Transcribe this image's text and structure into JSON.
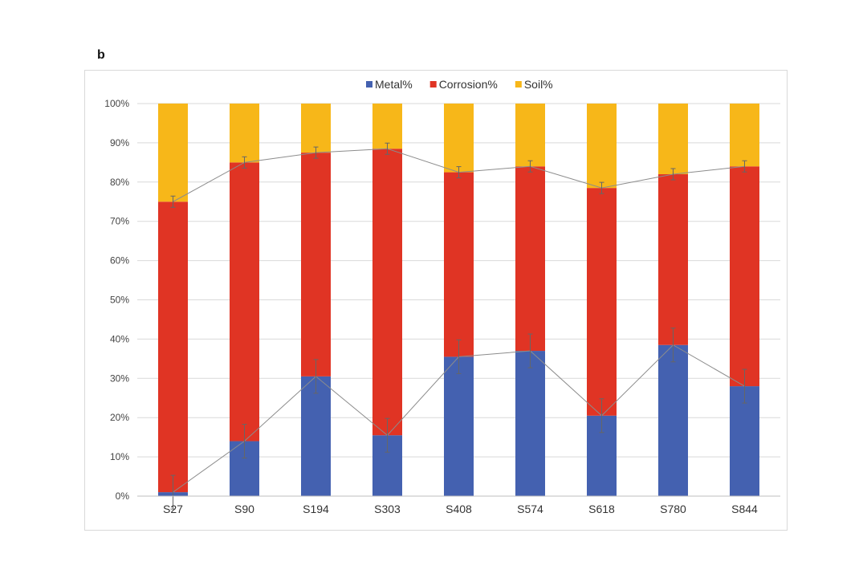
{
  "panel_label": "b",
  "chart_data": {
    "type": "bar",
    "stacked": true,
    "categories": [
      "S27",
      "S90",
      "S194",
      "S303",
      "S408",
      "S574",
      "S618",
      "S780",
      "S844"
    ],
    "series": [
      {
        "name": "Metal%",
        "color": "#4461b0",
        "values": [
          1,
          14,
          30.5,
          15.5,
          35.5,
          37,
          20.5,
          38.5,
          28
        ]
      },
      {
        "name": "Corrosion%",
        "color": "#e03424",
        "values": [
          74,
          71,
          57,
          73,
          47,
          47,
          58,
          43.5,
          56
        ]
      },
      {
        "name": "Soil%",
        "color": "#f7b719",
        "values": [
          25,
          15,
          12.5,
          11.5,
          17.5,
          16,
          21.5,
          18,
          16
        ]
      }
    ],
    "yticks": [
      "0%",
      "10%",
      "20%",
      "30%",
      "40%",
      "50%",
      "60%",
      "70%",
      "80%",
      "90%",
      "100%"
    ],
    "ylim": [
      0,
      100
    ],
    "grid": true,
    "legend_position": "top-center",
    "error_bars": true,
    "trend_lines": true
  }
}
